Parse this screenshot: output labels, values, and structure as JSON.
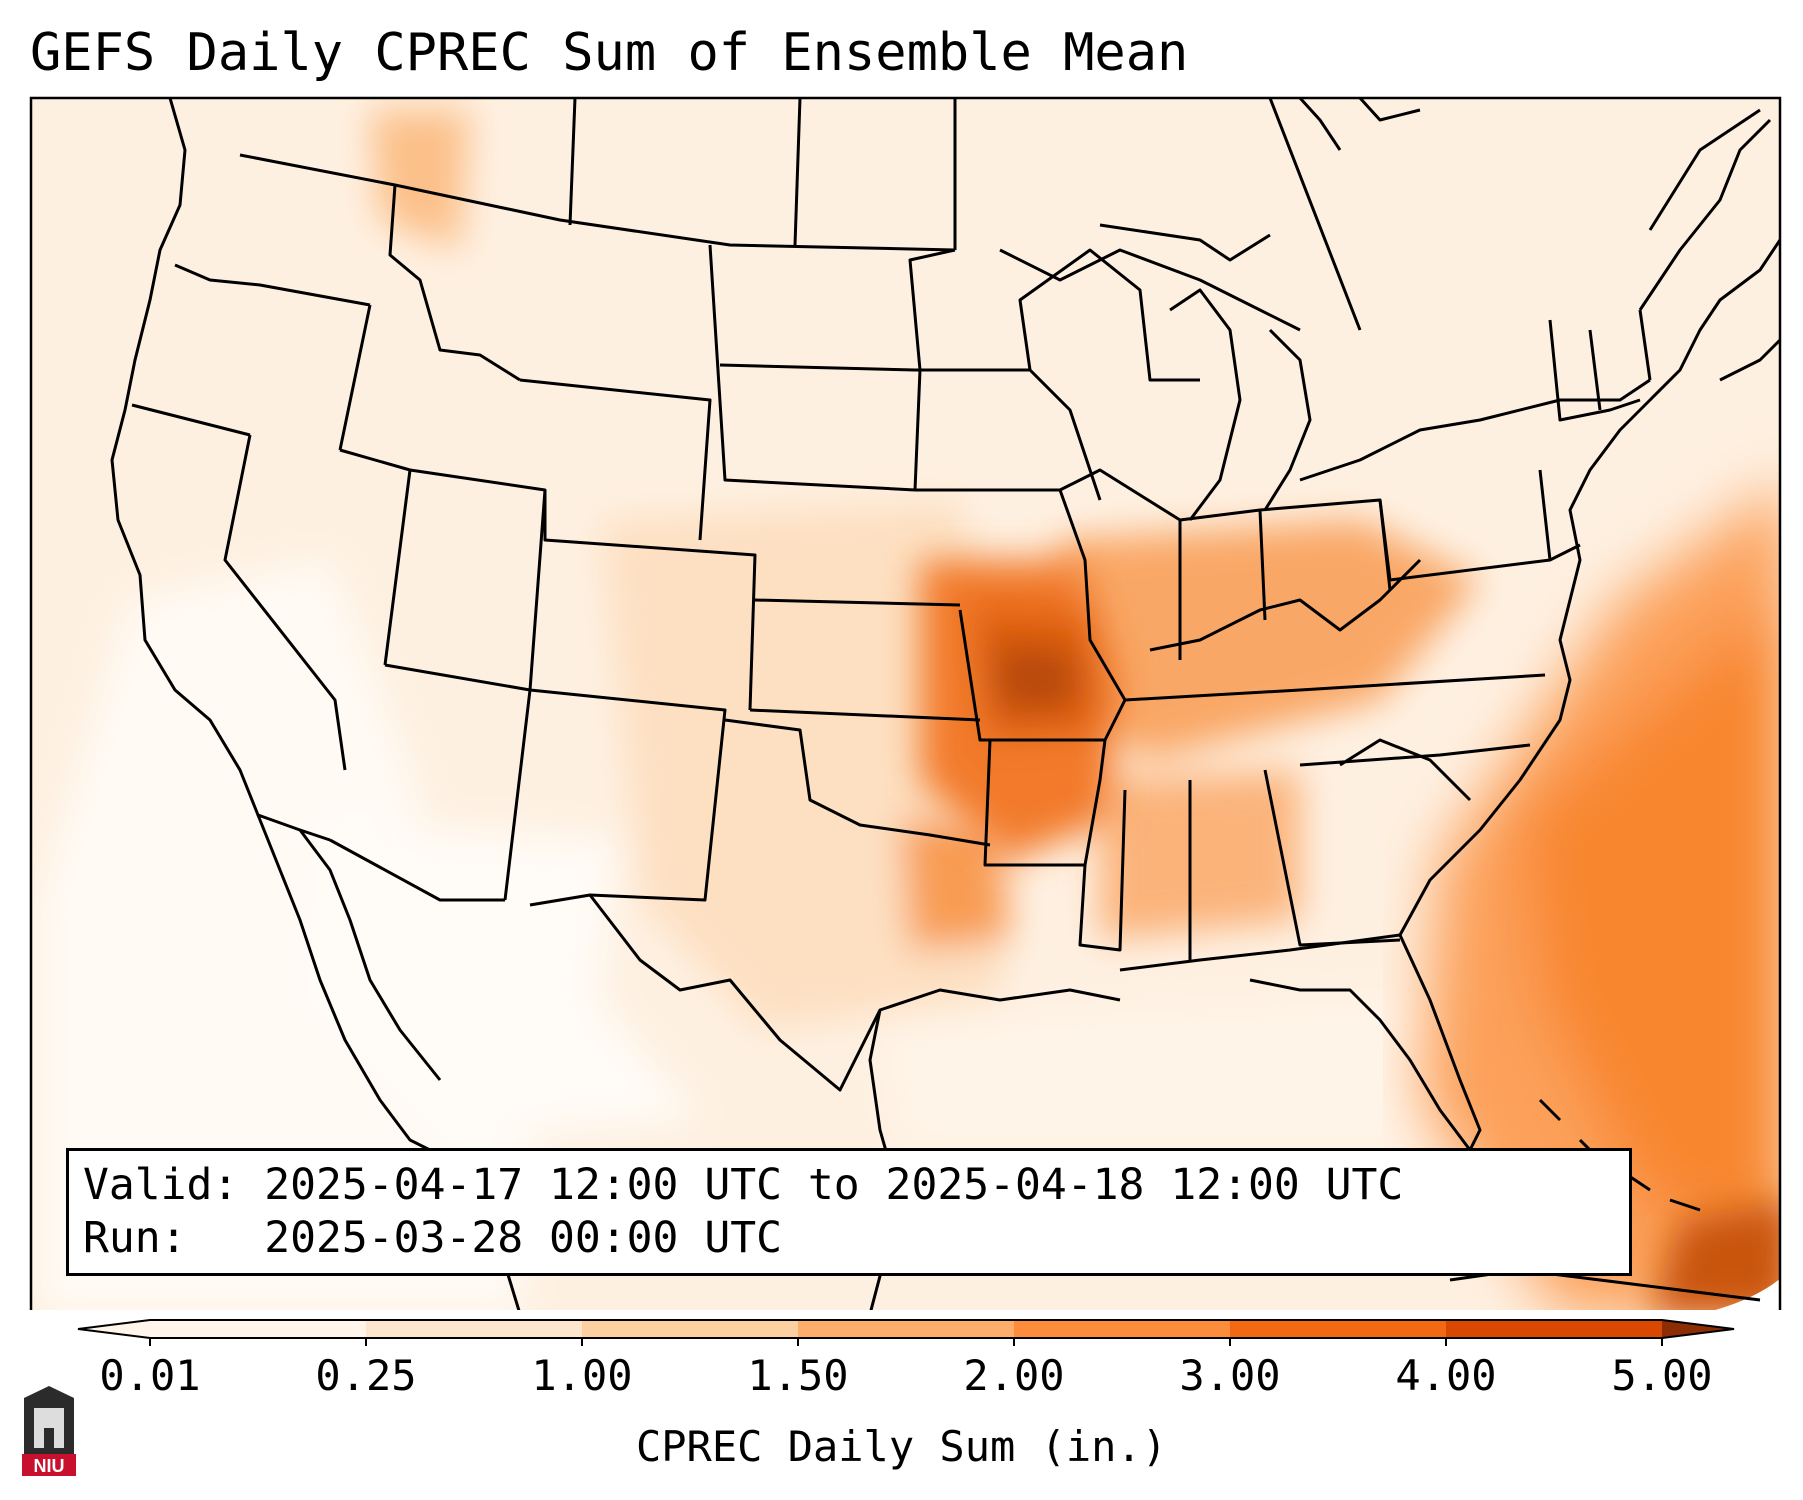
{
  "title": "GEFS Daily CPREC Sum of Ensemble Mean",
  "info": {
    "valid_label": "Valid:",
    "valid_value": "2025-04-17 12:00 UTC to 2025-04-18 12:00 UTC",
    "run_label": "Run:",
    "run_value": "2025-03-28 00:00 UTC"
  },
  "colorbar": {
    "label": "CPREC Daily Sum (in.)",
    "ticks": [
      "0.01",
      "0.25",
      "1.00",
      "1.50",
      "2.00",
      "3.00",
      "4.00",
      "5.00"
    ],
    "colors": [
      "#fff5eb",
      "#fee6ce",
      "#fdd0a2",
      "#fdae6b",
      "#fd8d3c",
      "#f16913",
      "#d94801",
      "#8c2d04"
    ]
  },
  "logo_text": "NIU",
  "map": {
    "precip_areas": [
      {
        "name": "plains-light",
        "level": "0.25-1.00"
      },
      {
        "name": "mid-mississippi-heavy",
        "level": "1.50-2.00"
      },
      {
        "name": "missouri-max",
        "level": "3.00-4.00"
      },
      {
        "name": "atlantic-band",
        "level": "1.00-2.00"
      }
    ]
  }
}
